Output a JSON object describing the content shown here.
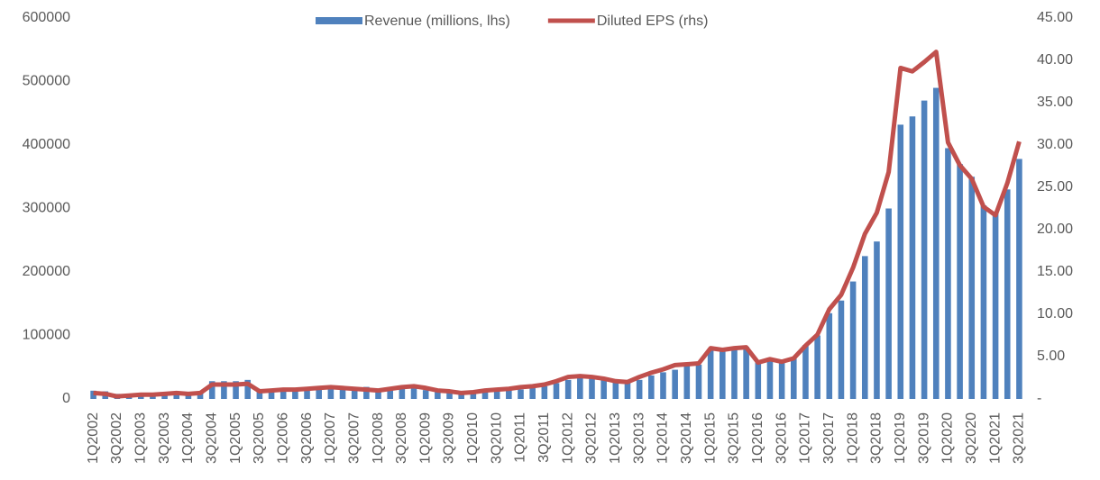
{
  "chart_data": {
    "type": "bar_line",
    "categories": [
      "1Q2002",
      null,
      "3Q2002",
      null,
      "1Q2003",
      null,
      "3Q2003",
      null,
      "1Q2004",
      null,
      "3Q2004",
      null,
      "1Q2005",
      null,
      "3Q2005",
      null,
      "1Q2006",
      null,
      "3Q2006",
      null,
      "1Q2007",
      null,
      "3Q2007",
      null,
      "1Q2008",
      null,
      "3Q2008",
      null,
      "1Q2009",
      null,
      "3Q2009",
      null,
      "1Q2010",
      null,
      "3Q2010",
      null,
      "1Q2011",
      null,
      "3Q2011",
      null,
      "1Q2012",
      null,
      "3Q2012",
      null,
      "1Q2013",
      null,
      "3Q2013",
      null,
      "1Q2014",
      null,
      "3Q2014",
      null,
      "1Q2015",
      null,
      "3Q2015",
      null,
      "1Q2016",
      null,
      "3Q2016",
      null,
      "1Q2017",
      null,
      "3Q2017",
      null,
      "1Q2018",
      null,
      "3Q2018",
      null,
      "1Q2019",
      null,
      "3Q2019",
      null,
      "1Q2020",
      null,
      "3Q2020",
      null,
      "1Q2021",
      null,
      "3Q2021"
    ],
    "series": [
      {
        "name": "Revenue (millions, lhs)",
        "color": "#4f81bd",
        "kind": "bar",
        "axis": "y",
        "values": [
          13000,
          12000,
          8000,
          8000,
          8000,
          8000,
          9000,
          8000,
          8000,
          9000,
          28000,
          28000,
          28000,
          30000,
          12000,
          13000,
          13000,
          13000,
          14000,
          15000,
          20000,
          20000,
          19000,
          19000,
          14000,
          15000,
          17000,
          17000,
          14000,
          11000,
          10000,
          9000,
          10000,
          12000,
          13000,
          14000,
          15000,
          17000,
          20000,
          25000,
          30000,
          33000,
          32000,
          30000,
          28000,
          27000,
          30000,
          37000,
          42000,
          46000,
          52000,
          54000,
          78000,
          76000,
          80000,
          82000,
          60000,
          65000,
          60000,
          65000,
          85000,
          100000,
          135000,
          155000,
          185000,
          225000,
          248000,
          300000,
          432000,
          445000,
          470000,
          490000,
          395000,
          370000,
          350000,
          305000,
          295000,
          330000,
          378000
        ]
      },
      {
        "name": "Diluted EPS (rhs)",
        "color": "#c0504d",
        "kind": "line",
        "axis": "y2",
        "values": [
          0.7,
          0.6,
          0.3,
          0.4,
          0.5,
          0.5,
          0.6,
          0.7,
          0.6,
          0.7,
          1.7,
          1.7,
          1.7,
          1.8,
          0.9,
          1.0,
          1.1,
          1.1,
          1.2,
          1.3,
          1.4,
          1.3,
          1.2,
          1.1,
          1.0,
          1.2,
          1.4,
          1.5,
          1.3,
          1.0,
          0.9,
          0.7,
          0.8,
          1.0,
          1.1,
          1.2,
          1.4,
          1.5,
          1.7,
          2.1,
          2.6,
          2.7,
          2.6,
          2.4,
          2.1,
          2.0,
          2.6,
          3.1,
          3.5,
          4.0,
          4.1,
          4.2,
          6.0,
          5.8,
          6.0,
          6.1,
          4.3,
          4.7,
          4.4,
          4.8,
          6.3,
          7.6,
          10.6,
          12.3,
          15.5,
          19.5,
          22.0,
          26.8,
          39.1,
          38.7,
          39.8,
          41.0,
          30.3,
          27.6,
          26.0,
          22.7,
          21.7,
          25.5,
          30.4
        ]
      }
    ],
    "ylim": [
      0,
      600000
    ],
    "yticks": [
      0,
      100000,
      200000,
      300000,
      400000,
      500000,
      600000
    ],
    "y2lim": [
      0,
      45
    ],
    "y2ticks": [
      {
        "value": 0,
        "label": "-"
      },
      {
        "value": 5,
        "label": "5.00"
      },
      {
        "value": 10,
        "label": "10.00"
      },
      {
        "value": 15,
        "label": "15.00"
      },
      {
        "value": 20,
        "label": "20.00"
      },
      {
        "value": 25,
        "label": "25.00"
      },
      {
        "value": 30,
        "label": "30.00"
      },
      {
        "value": 35,
        "label": "35.00"
      },
      {
        "value": 40,
        "label": "40.00"
      },
      {
        "value": 45,
        "label": "45.00"
      }
    ],
    "legend": "top"
  }
}
